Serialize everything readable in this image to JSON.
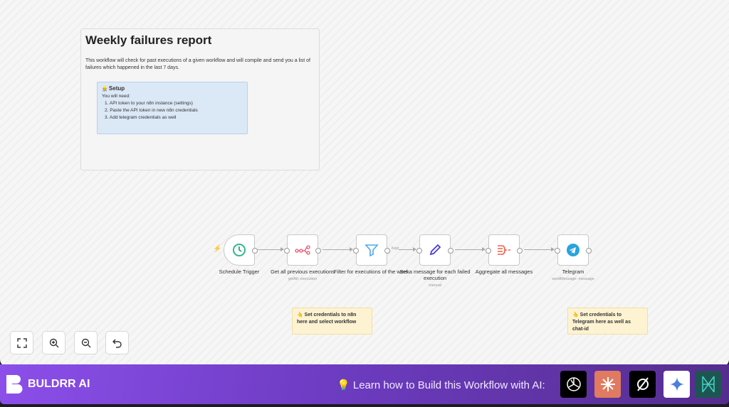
{
  "note": {
    "title": "Weekly failures report",
    "description": "This workflow will check for past executions of a given workflow and will compile and send you a list of failures which happened in the last 7 days.",
    "setup": {
      "title": "Setup",
      "intro": "You will need:",
      "items": [
        "1. API token to your n8n instance (settings)",
        "2. Paste the API token in new n8n credentials",
        "3. Add telegram credentials as well"
      ]
    }
  },
  "nodes": [
    {
      "label": "Schedule Trigger",
      "sub": "",
      "icon": "clock-icon"
    },
    {
      "label": "Get all previous executions",
      "sub": "getAll: execution",
      "icon": "n8n-icon"
    },
    {
      "label": "Filter for executions of the week",
      "sub": "",
      "icon": "filter-icon"
    },
    {
      "label": "Set a message for each failed execution",
      "sub": "manual",
      "icon": "pencil-icon"
    },
    {
      "label": "Aggregate all messages",
      "sub": "",
      "icon": "aggregate-icon"
    },
    {
      "label": "Telegram",
      "sub": "sendMessage: message",
      "icon": "telegram-icon"
    }
  ],
  "edge_label": "Kept",
  "stickies": [
    "👆 Set credentials to n8n here and select workflow",
    "👆 Set credentials to Telegram here as well as chat-id"
  ],
  "banner": {
    "brand": "BULDRR AI",
    "learn": "Learn how to Build this Workflow with AI:",
    "colors": {
      "start": "#8c4fea",
      "end": "#552d8e"
    }
  },
  "ai_tools": [
    "chatgpt-icon",
    "claude-icon",
    "perplexity-icon",
    "gemini-icon",
    "deepseek-icon"
  ]
}
